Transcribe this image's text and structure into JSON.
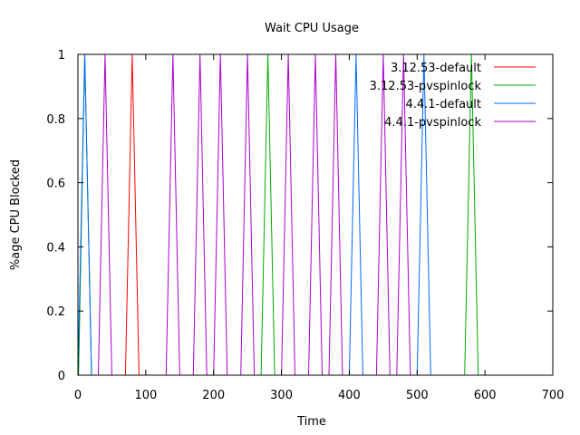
{
  "chart_data": {
    "type": "line",
    "title": "Wait CPU Usage",
    "xlabel": "Time",
    "ylabel": "%age CPU Blocked",
    "xlim": [
      0,
      700
    ],
    "ylim": [
      0,
      1
    ],
    "xticks": [
      0,
      100,
      200,
      300,
      400,
      500,
      600,
      700
    ],
    "yticks": [
      0,
      0.2,
      0.4,
      0.6,
      0.8,
      1
    ],
    "xtick_labels": [
      "0",
      "100",
      "200",
      "300",
      "400",
      "500",
      "600",
      "700"
    ],
    "ytick_labels": [
      "0",
      "0.2",
      "0.4",
      "0.6",
      "0.8",
      "1"
    ],
    "grid": false,
    "legend_position": "top-right",
    "series": [
      {
        "name": "3.12.53-default",
        "color": "#ff0000",
        "x": [
          0,
          70,
          80,
          90,
          700
        ],
        "y": [
          0,
          0,
          1,
          0,
          0
        ]
      },
      {
        "name": "3.12.53-pvspinlock",
        "color": "#00aa00",
        "x": [
          0,
          1,
          10,
          20,
          260,
          270,
          280,
          290,
          300,
          570,
          580,
          590,
          700
        ],
        "y": [
          0,
          0,
          1,
          0,
          0,
          0,
          1,
          0,
          0,
          0,
          1,
          0,
          0
        ]
      },
      {
        "name": "4.4.1-default",
        "color": "#0066ff",
        "x": [
          0,
          10,
          20,
          400,
          410,
          420,
          500,
          510,
          520,
          700
        ],
        "y": [
          0,
          1,
          0,
          0,
          1,
          0,
          0,
          1,
          0,
          0
        ]
      },
      {
        "name": "4.4.1-pvspinlock",
        "color": "#aa00cc",
        "x": [
          0,
          30,
          40,
          50,
          130,
          140,
          150,
          160,
          170,
          180,
          190,
          200,
          210,
          220,
          230,
          240,
          250,
          260,
          300,
          310,
          320,
          330,
          340,
          350,
          360,
          370,
          380,
          390,
          440,
          450,
          460,
          470,
          480,
          490,
          700
        ],
        "y": [
          0,
          0,
          1,
          0,
          0,
          1,
          0,
          0,
          0,
          1,
          0,
          0,
          1,
          0,
          0,
          0,
          1,
          0,
          0,
          1,
          0,
          0,
          0,
          1,
          0,
          0,
          1,
          0,
          0,
          1,
          0,
          0,
          1,
          0,
          0
        ]
      }
    ]
  }
}
